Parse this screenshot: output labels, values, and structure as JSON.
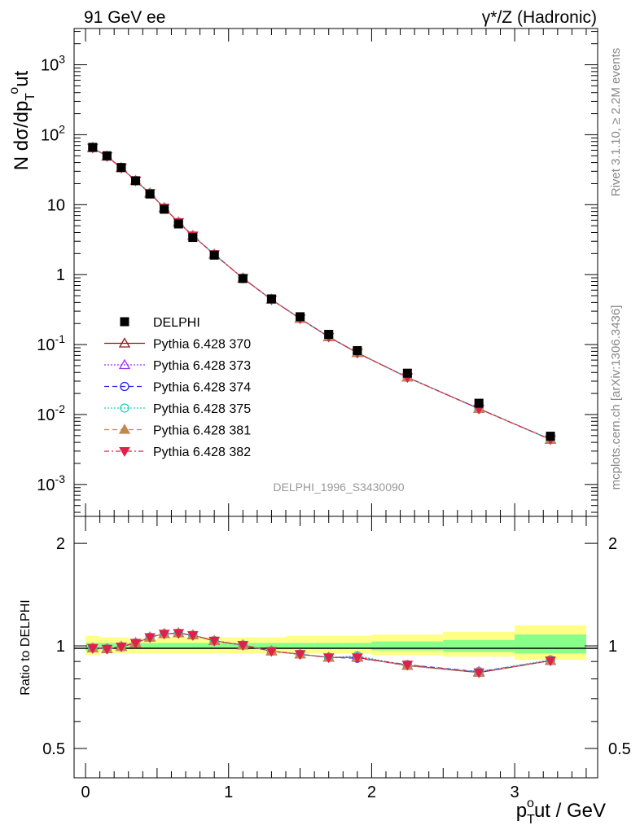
{
  "header": {
    "left": "91 GeV ee",
    "right": "γ*/Z (Hadronic)"
  },
  "side_labels": {
    "rivet": "Rivet 3.1.10, ≥ 2.2M events",
    "mcplots": "mcplots.cern.ch [arXiv:1306.3436]"
  },
  "analysis_label": "DELPHI_1996_S3430090",
  "colors": {
    "data": "#000000",
    "s370": "#8b1a1a",
    "s373": "#9b30ff",
    "s374": "#2222ee",
    "s375": "#20d0c0",
    "s381": "#c08850",
    "s382": "#e0204a",
    "band_outer": "#ffff88",
    "band_inner": "#88ff88"
  },
  "chart_data": [
    {
      "type": "scatter",
      "panel": "main",
      "ylabel": "N dσ/dp_T^out",
      "yscale": "log",
      "ylim": [
        0.00035,
        3300
      ],
      "xlim": [
        -0.08,
        3.58
      ],
      "y_tick_labels": [
        "10^-3",
        "10^-2",
        "10^-1",
        "1",
        "10",
        "10^2",
        "10^3"
      ],
      "x": [
        0.05,
        0.15,
        0.25,
        0.35,
        0.45,
        0.55,
        0.65,
        0.75,
        0.9,
        1.1,
        1.3,
        1.5,
        1.7,
        1.9,
        2.25,
        2.75,
        3.25
      ],
      "series": [
        {
          "name": "DELPHI",
          "values": [
            66,
            50,
            34,
            22,
            14.2,
            8.6,
            5.3,
            3.4,
            1.9,
            0.88,
            0.45,
            0.25,
            0.14,
            0.082,
            0.039,
            0.0145,
            0.0049
          ]
        },
        {
          "name": "Pythia 6.428 370",
          "values": [
            65,
            49,
            33.6,
            22,
            14.6,
            9.0,
            5.6,
            3.6,
            1.95,
            0.89,
            0.44,
            0.235,
            0.129,
            0.076,
            0.034,
            0.0121,
            0.0044
          ]
        },
        {
          "name": "Pythia 6.428 373",
          "values": [
            65,
            49,
            33.6,
            22,
            14.6,
            9.0,
            5.6,
            3.6,
            1.95,
            0.89,
            0.44,
            0.235,
            0.129,
            0.076,
            0.034,
            0.0122,
            0.0044
          ]
        },
        {
          "name": "Pythia 6.428 374",
          "values": [
            65,
            49,
            33.6,
            22,
            14.6,
            9.0,
            5.6,
            3.6,
            1.95,
            0.89,
            0.44,
            0.236,
            0.129,
            0.076,
            0.034,
            0.0121,
            0.0044
          ]
        },
        {
          "name": "Pythia 6.428 375",
          "values": [
            65,
            49,
            33.7,
            22,
            14.6,
            9.0,
            5.6,
            3.6,
            1.95,
            0.89,
            0.44,
            0.236,
            0.13,
            0.077,
            0.034,
            0.0122,
            0.0044
          ]
        },
        {
          "name": "Pythia 6.428 381",
          "values": [
            65,
            49,
            33.6,
            22,
            14.6,
            9.0,
            5.6,
            3.6,
            1.95,
            0.89,
            0.44,
            0.235,
            0.129,
            0.076,
            0.034,
            0.0121,
            0.0044
          ]
        },
        {
          "name": "Pythia 6.428 382",
          "values": [
            65,
            49,
            33.6,
            22,
            14.6,
            9.0,
            5.6,
            3.6,
            1.95,
            0.89,
            0.44,
            0.235,
            0.129,
            0.076,
            0.034,
            0.0121,
            0.0044
          ]
        }
      ]
    },
    {
      "type": "line",
      "panel": "ratio",
      "xlabel": "p_T^out / GeV",
      "ylabel": "Ratio to DELPHI",
      "yscale": "log",
      "ylim": [
        0.41,
        2.4
      ],
      "xlim": [
        -0.08,
        3.58
      ],
      "x_tick_labels": [
        "0",
        "1",
        "2",
        "3"
      ],
      "y_tick_labels": [
        "0.5",
        "1",
        "2"
      ],
      "x": [
        0.05,
        0.15,
        0.25,
        0.35,
        0.45,
        0.55,
        0.65,
        0.75,
        0.9,
        1.1,
        1.3,
        1.5,
        1.7,
        1.9,
        2.25,
        2.75,
        3.25
      ],
      "band_edges": [
        0,
        0.1,
        0.2,
        0.3,
        0.4,
        0.5,
        0.6,
        0.7,
        0.8,
        1.0,
        1.2,
        1.4,
        1.6,
        1.8,
        2.0,
        2.5,
        3.0,
        3.5
      ],
      "band_outer": [
        [
          0.94,
          1.07
        ],
        [
          0.95,
          1.06
        ],
        [
          0.95,
          1.06
        ],
        [
          0.95,
          1.05
        ],
        [
          0.95,
          1.05
        ],
        [
          0.95,
          1.06
        ],
        [
          0.95,
          1.06
        ],
        [
          0.95,
          1.06
        ],
        [
          0.95,
          1.06
        ],
        [
          0.95,
          1.06
        ],
        [
          0.95,
          1.06
        ],
        [
          0.95,
          1.07
        ],
        [
          0.95,
          1.07
        ],
        [
          0.95,
          1.07
        ],
        [
          0.94,
          1.08
        ],
        [
          0.93,
          1.1
        ],
        [
          0.91,
          1.15
        ]
      ],
      "band_inner": [
        [
          0.97,
          1.02
        ],
        [
          0.98,
          1.02
        ],
        [
          0.98,
          1.02
        ],
        [
          0.98,
          1.02
        ],
        [
          0.98,
          1.02
        ],
        [
          0.98,
          1.02
        ],
        [
          0.98,
          1.02
        ],
        [
          0.98,
          1.02
        ],
        [
          0.98,
          1.02
        ],
        [
          0.98,
          1.02
        ],
        [
          0.98,
          1.02
        ],
        [
          0.98,
          1.02
        ],
        [
          0.98,
          1.02
        ],
        [
          0.98,
          1.02
        ],
        [
          0.97,
          1.03
        ],
        [
          0.96,
          1.04
        ],
        [
          0.95,
          1.08
        ]
      ],
      "series": [
        {
          "name": "Pythia 6.428 370",
          "values": [
            0.985,
            0.98,
            0.995,
            1.02,
            1.06,
            1.085,
            1.09,
            1.075,
            1.035,
            1.005,
            0.965,
            0.945,
            0.925,
            0.925,
            0.875,
            0.835,
            0.905
          ]
        },
        {
          "name": "Pythia 6.428 373",
          "values": [
            0.985,
            0.98,
            0.995,
            1.02,
            1.06,
            1.085,
            1.09,
            1.075,
            1.035,
            1.005,
            0.965,
            0.945,
            0.925,
            0.93,
            0.875,
            0.84,
            0.905
          ]
        },
        {
          "name": "Pythia 6.428 374",
          "values": [
            0.985,
            0.98,
            0.995,
            1.02,
            1.06,
            1.085,
            1.09,
            1.075,
            1.035,
            1.005,
            0.965,
            0.945,
            0.925,
            0.92,
            0.88,
            0.84,
            0.905
          ]
        },
        {
          "name": "Pythia 6.428 375",
          "values": [
            0.985,
            0.98,
            0.995,
            1.02,
            1.06,
            1.085,
            1.09,
            1.075,
            1.035,
            1.005,
            0.965,
            0.945,
            0.925,
            0.935,
            0.875,
            0.84,
            0.91
          ]
        },
        {
          "name": "Pythia 6.428 381",
          "values": [
            0.985,
            0.98,
            0.995,
            1.02,
            1.06,
            1.085,
            1.09,
            1.075,
            1.035,
            1.005,
            0.965,
            0.945,
            0.925,
            0.925,
            0.875,
            0.835,
            0.905
          ]
        },
        {
          "name": "Pythia 6.428 382",
          "values": [
            0.985,
            0.98,
            0.995,
            1.02,
            1.06,
            1.085,
            1.09,
            1.075,
            1.035,
            1.005,
            0.965,
            0.945,
            0.925,
            0.925,
            0.88,
            0.835,
            0.905
          ]
        }
      ]
    }
  ]
}
